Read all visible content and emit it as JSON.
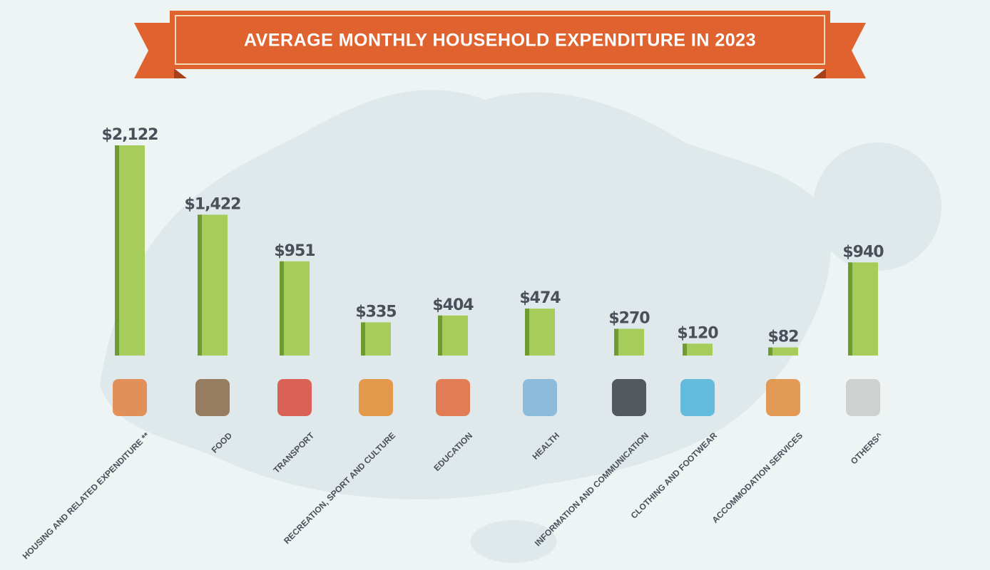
{
  "chart_data": {
    "type": "bar",
    "title": "AVERAGE MONTHLY HOUSEHOLD EXPENDITURE  IN 2023",
    "categories": [
      "HOUSING AND RELATED EXPENDITURE **",
      "FOOD",
      "TRANSPORT",
      "RECREATION, SPORT AND CULTURE",
      "EDUCATION",
      "HEALTH",
      "INFORMATION AND COMMUNICATION",
      "CLOTHING AND FOOTWEAR",
      "ACCOMMODATION SERVICES",
      "OTHERS^"
    ],
    "values": [
      2122,
      1422,
      951,
      335,
      404,
      474,
      270,
      120,
      82,
      940
    ],
    "value_labels": [
      "$2,122",
      "$1,422",
      "$951",
      "$335",
      "$404",
      "$474",
      "$270",
      "$120",
      "$82",
      "$940"
    ],
    "color": "#a6cd5c"
  }
}
